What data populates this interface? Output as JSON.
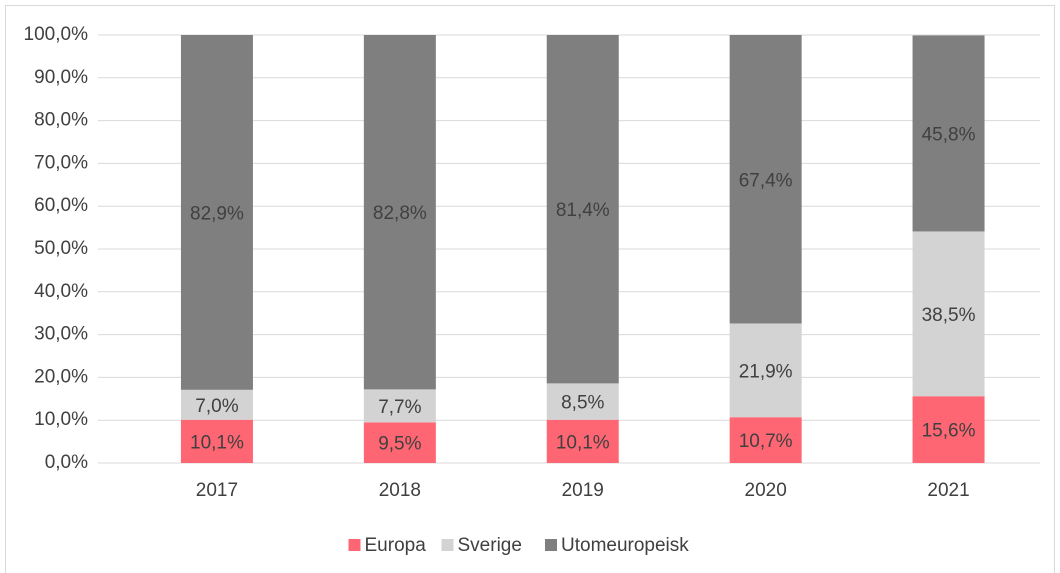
{
  "chart_data": {
    "type": "stacked_bar",
    "categories": [
      "2017",
      "2018",
      "2019",
      "2020",
      "2021"
    ],
    "series": [
      {
        "name": "Europa",
        "color": "#ff6673",
        "values": [
          10.1,
          9.5,
          10.1,
          10.7,
          15.6
        ],
        "value_labels": [
          "10,1%",
          "9,5%",
          "10,1%",
          "10,7%",
          "15,6%"
        ]
      },
      {
        "name": "Sverige",
        "color": "#d3d3d3",
        "values": [
          7.0,
          7.7,
          8.5,
          21.9,
          38.5
        ],
        "value_labels": [
          "7,0%",
          "7,7%",
          "8,5%",
          "21,9%",
          "38,5%"
        ]
      },
      {
        "name": "Utomeuropeisk",
        "color": "#7f7f7f",
        "values": [
          82.9,
          82.8,
          81.4,
          67.4,
          45.8
        ],
        "value_labels": [
          "82,9%",
          "82,8%",
          "81,4%",
          "67,4%",
          "45,8%"
        ]
      }
    ],
    "ylim": [
      0,
      100
    ],
    "yticks": [
      {
        "value": 0,
        "label": "0,0%"
      },
      {
        "value": 10,
        "label": "10,0%"
      },
      {
        "value": 20,
        "label": "20,0%"
      },
      {
        "value": 30,
        "label": "30,0%"
      },
      {
        "value": 40,
        "label": "40,0%"
      },
      {
        "value": 50,
        "label": "50,0%"
      },
      {
        "value": 60,
        "label": "60,0%"
      },
      {
        "value": 70,
        "label": "70,0%"
      },
      {
        "value": 80,
        "label": "80,0%"
      },
      {
        "value": 90,
        "label": "90,0%"
      },
      {
        "value": 100,
        "label": "100,0%"
      }
    ],
    "grid": true,
    "legend": "bottom"
  }
}
